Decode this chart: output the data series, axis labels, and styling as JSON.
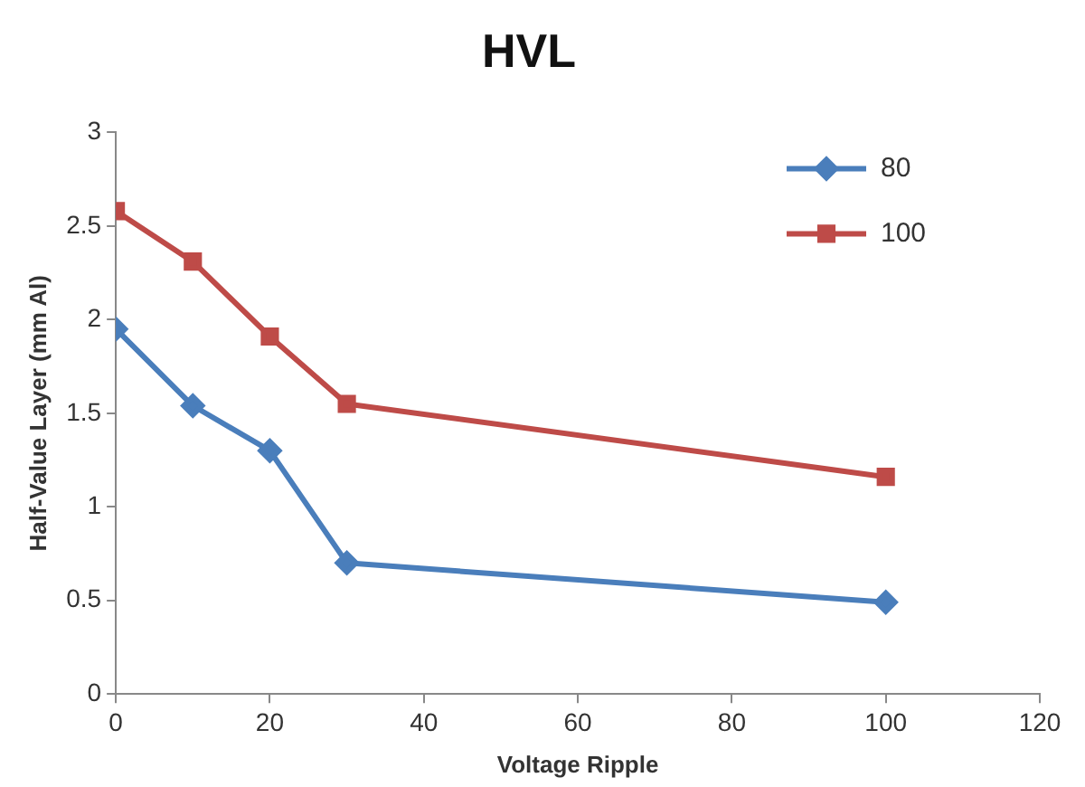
{
  "chart_data": {
    "type": "line",
    "title": "HVL",
    "xlabel": "Voltage Ripple",
    "ylabel": "Half-Value Layer (mm Al)",
    "xlim": [
      0,
      120
    ],
    "xticks": [
      0,
      20,
      40,
      60,
      80,
      100,
      120
    ],
    "ylim": [
      0,
      3
    ],
    "yticks": [
      0,
      0.5,
      1,
      1.5,
      2,
      2.5,
      3
    ],
    "grid": false,
    "legend": "top right",
    "line_style": "solid",
    "series": [
      {
        "name": "80",
        "color": "#4a7ebb",
        "marker": "diamond",
        "x": [
          0,
          10,
          20,
          30,
          100
        ],
        "values": [
          1.95,
          1.54,
          1.3,
          0.7,
          0.49
        ]
      },
      {
        "name": "100",
        "color": "#be4b48",
        "marker": "square",
        "x": [
          0,
          10,
          20,
          30,
          100
        ],
        "values": [
          2.58,
          2.31,
          1.91,
          1.55,
          1.16
        ]
      }
    ]
  }
}
